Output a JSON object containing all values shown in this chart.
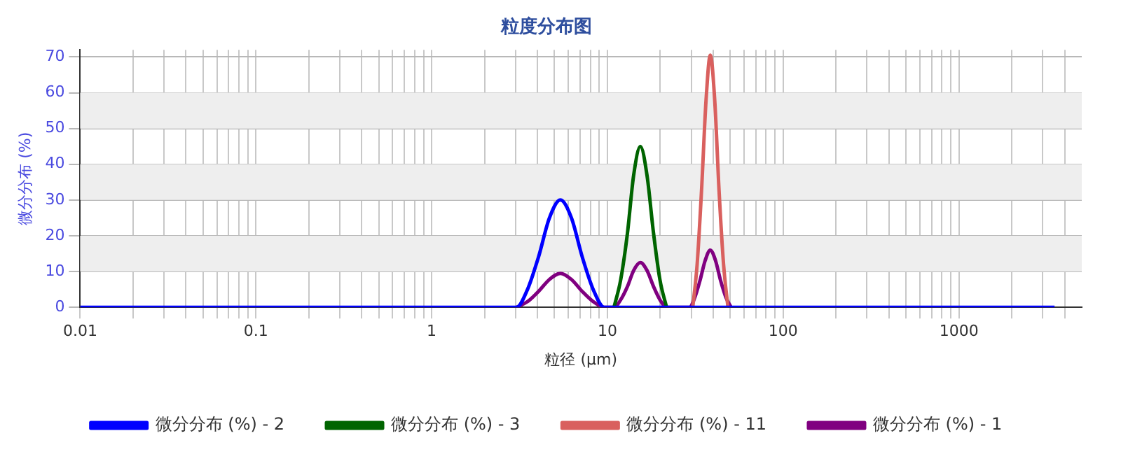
{
  "chart_data": {
    "type": "line",
    "title": "粒度分布图",
    "xlabel": "粒径 (μm)",
    "ylabel": "微分分布 (%)",
    "log": "x",
    "xlim": [
      0.01,
      5000
    ],
    "ylim": [
      0,
      72
    ],
    "xticks": [
      0.01,
      {
        "value": 0.02,
        "label": null
      },
      {
        "value": 0.03,
        "label": null
      },
      {
        "value": 0.04,
        "label": null
      },
      {
        "value": 0.05,
        "label": null
      },
      {
        "value": 0.06,
        "label": null
      },
      {
        "value": 0.07,
        "label": null
      },
      {
        "value": 0.08,
        "label": null
      },
      {
        "value": 0.09,
        "label": null
      },
      0.1,
      {
        "value": 0.2,
        "label": null
      },
      {
        "value": 0.3,
        "label": null
      },
      {
        "value": 0.4,
        "label": null
      },
      {
        "value": 0.5,
        "label": null
      },
      {
        "value": 0.6,
        "label": null
      },
      {
        "value": 0.7,
        "label": null
      },
      {
        "value": 0.8,
        "label": null
      },
      {
        "value": 0.9,
        "label": null
      },
      1,
      {
        "value": 2,
        "label": null
      },
      {
        "value": 3,
        "label": null
      },
      {
        "value": 4,
        "label": null
      },
      {
        "value": 5,
        "label": null
      },
      {
        "value": 6,
        "label": null
      },
      {
        "value": 7,
        "label": null
      },
      {
        "value": 8,
        "label": null
      },
      {
        "value": 9,
        "label": null
      },
      10,
      {
        "value": 20,
        "label": null
      },
      {
        "value": 30,
        "label": null
      },
      {
        "value": 40,
        "label": null
      },
      {
        "value": 50,
        "label": null
      },
      {
        "value": 60,
        "label": null
      },
      {
        "value": 70,
        "label": null
      },
      {
        "value": 80,
        "label": null
      },
      {
        "value": 90,
        "label": null
      },
      100,
      {
        "value": 200,
        "label": null
      },
      {
        "value": 300,
        "label": null
      },
      {
        "value": 400,
        "label": null
      },
      {
        "value": 500,
        "label": null
      },
      {
        "value": 600,
        "label": null
      },
      {
        "value": 700,
        "label": null
      },
      {
        "value": 800,
        "label": null
      },
      {
        "value": 900,
        "label": null
      },
      1000,
      {
        "value": 2000,
        "label": null
      },
      {
        "value": 3000,
        "label": null
      },
      {
        "value": 4000,
        "label": null
      }
    ],
    "yticks": [
      0,
      10,
      20,
      30,
      40,
      50,
      60,
      70
    ],
    "grid": true,
    "legend": "bottom",
    "marker": "none",
    "line_style": "solid",
    "bands": [
      {
        "axis": "y",
        "from": 10,
        "to": 20,
        "color": "#eeeeee"
      },
      {
        "axis": "y",
        "from": 30,
        "to": 40,
        "color": "#eeeeee"
      },
      {
        "axis": "y",
        "from": 50,
        "to": 60,
        "color": "#eeeeee"
      }
    ],
    "series": [
      {
        "name": "微分分布 (%) - 2",
        "color": "#0000ff",
        "x": [
          0.01,
          3.04,
          3.51,
          4.05,
          4.68,
          5.4,
          6.24,
          7.2,
          8.3,
          9.6,
          3500
        ],
        "values": [
          0,
          0,
          5,
          14,
          25,
          30,
          25,
          14,
          5,
          0,
          0
        ]
      },
      {
        "name": "微分分布 (%) - 3",
        "color": "#006400",
        "x": [
          10.9,
          11.9,
          13.0,
          14.1,
          15.4,
          16.8,
          18.3,
          19.9,
          21.7
        ],
        "values": [
          0,
          7.7,
          20.7,
          36.9,
          45,
          36.9,
          20.7,
          7.7,
          0
        ]
      },
      {
        "name": "微分分布 (%) - 11",
        "color": "#d9605e",
        "x": [
          30.6,
          32.4,
          34.3,
          36.4,
          38.5,
          40.8,
          43.2,
          45.8,
          48.5
        ],
        "values": [
          0,
          12,
          32.4,
          57.8,
          70.5,
          57.8,
          32.4,
          12,
          0
        ]
      },
      {
        "name": "微分分布 (%) - 1",
        "color": "#800080",
        "x": [
          3.04,
          3.51,
          4.05,
          4.68,
          5.4,
          6.24,
          7.2,
          8.3,
          9.6,
          10.9,
          11.9,
          13.0,
          14.1,
          15.4,
          16.8,
          18.3,
          19.9,
          21.7,
          29.3,
          31.4,
          33.6,
          36.0,
          38.5,
          41.2,
          44.1,
          47.3,
          50.6
        ],
        "values": [
          0,
          1.6,
          4.4,
          7.8,
          9.5,
          7.8,
          4.4,
          1.6,
          0,
          0,
          2.1,
          5.8,
          10.3,
          12.5,
          10.3,
          5.8,
          2.1,
          0,
          0,
          2.7,
          7.4,
          13.1,
          16,
          13.1,
          7.4,
          2.7,
          0
        ]
      }
    ]
  }
}
